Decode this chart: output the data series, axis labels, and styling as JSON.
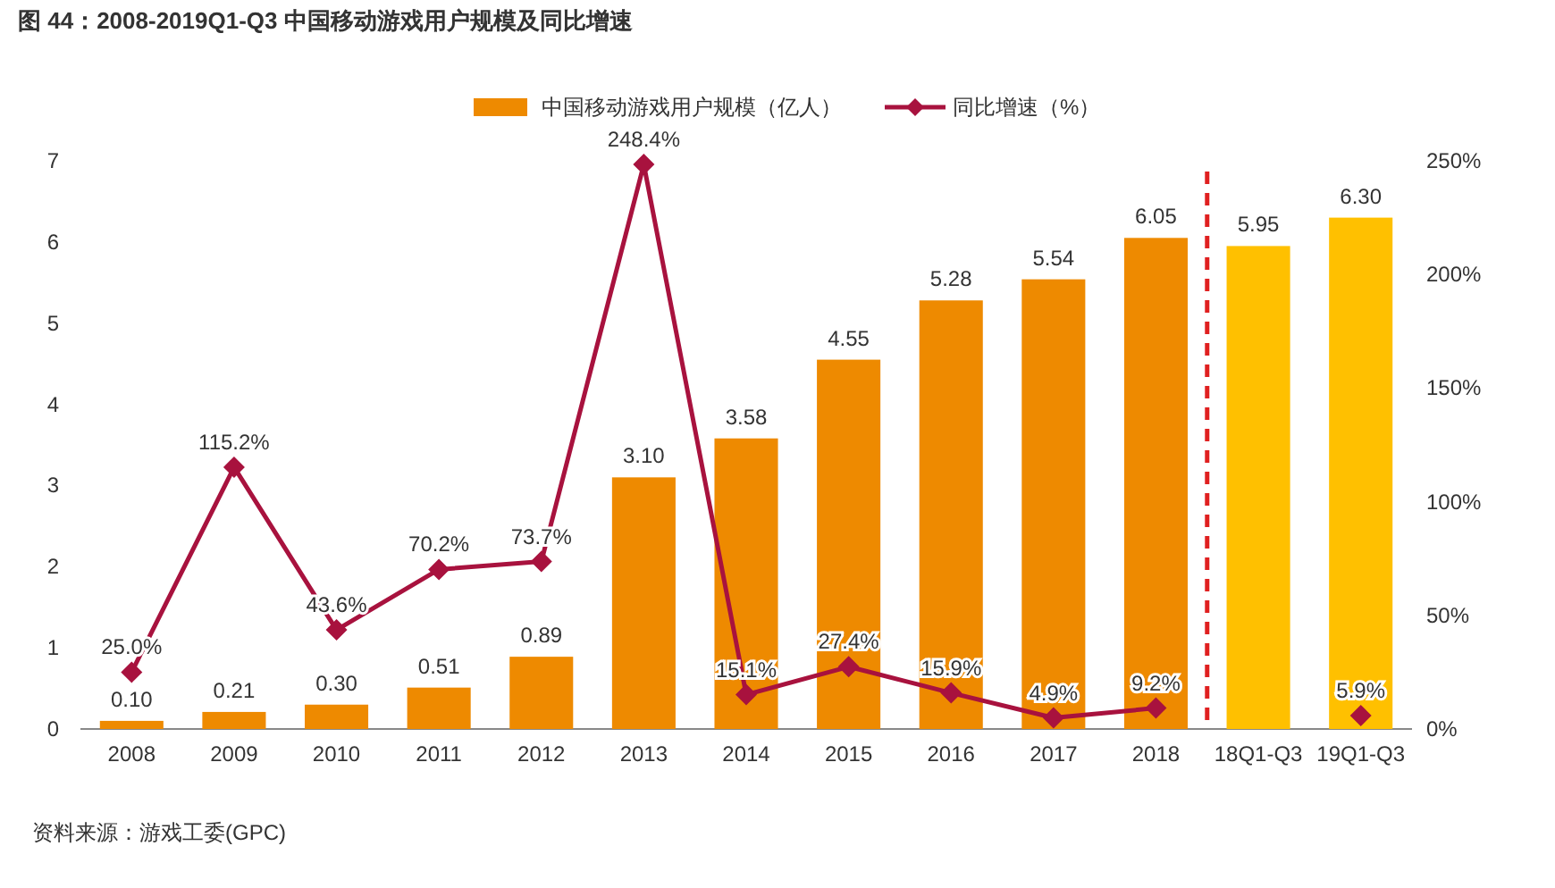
{
  "chart_data": {
    "type": "bar",
    "title": "图 44：2008-2019Q1-Q3 中国移动游戏用户规模及同比增速",
    "categories": [
      "2008",
      "2009",
      "2010",
      "2011",
      "2012",
      "2013",
      "2014",
      "2015",
      "2016",
      "2017",
      "2018",
      "18Q1-Q3",
      "19Q1-Q3"
    ],
    "series": [
      {
        "name": "中国移动游戏用户规模（亿人）",
        "color": "#ee8a00",
        "colors": [
          "#ee8a00",
          "#ee8a00",
          "#ee8a00",
          "#ee8a00",
          "#ee8a00",
          "#ee8a00",
          "#ee8a00",
          "#ee8a00",
          "#ee8a00",
          "#ee8a00",
          "#ee8a00",
          "#ffc000",
          "#ffc000"
        ],
        "values": [
          0.1,
          0.21,
          0.3,
          0.51,
          0.89,
          3.1,
          3.58,
          4.55,
          5.28,
          5.54,
          6.05,
          5.95,
          6.3
        ],
        "value_labels": [
          "0.10",
          "0.21",
          "0.30",
          "0.51",
          "0.89",
          "3.10",
          "3.58",
          "4.55",
          "5.28",
          "5.54",
          "6.05",
          "5.95",
          "6.30"
        ]
      },
      {
        "name": "同比增速（%）",
        "type": "line",
        "axis": "y2",
        "color": "#a8123e",
        "marker": "diamond",
        "values": [
          25.0,
          115.2,
          43.6,
          70.2,
          73.7,
          248.4,
          15.1,
          27.4,
          15.9,
          4.9,
          9.2,
          null,
          5.9
        ],
        "value_labels": [
          "25.0%",
          "115.2%",
          "43.6%",
          "70.2%",
          "73.7%",
          "248.4%",
          "15.1%",
          "27.4%",
          "15.9%",
          "4.9%",
          "9.2%",
          null,
          "5.9%"
        ]
      }
    ],
    "ylim": [
      0,
      7
    ],
    "yticks": [
      0,
      1,
      2,
      3,
      4,
      5,
      6,
      7
    ],
    "y2lim": [
      0,
      250
    ],
    "y2ticks": [
      {
        "value": 0,
        "label": "0%"
      },
      {
        "value": 50,
        "label": "50%"
      },
      {
        "value": 100,
        "label": "100%"
      },
      {
        "value": 150,
        "label": "150%"
      },
      {
        "value": 200,
        "label": "200%"
      },
      {
        "value": 250,
        "label": "250%"
      }
    ],
    "legend": "top",
    "grid": false,
    "annotations": [
      "资料来源：游戏工委(GPC)"
    ]
  }
}
